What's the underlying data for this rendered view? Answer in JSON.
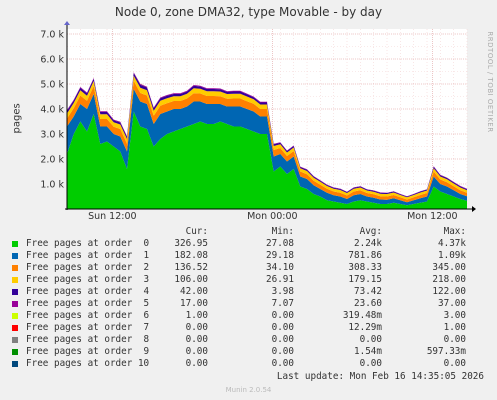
{
  "chart_data": {
    "type": "area",
    "title": "Node 0, zone DMA32, type Movable - by day",
    "ylabel": "pages",
    "side_label": "RRDTOOL / TOBI OETIKER",
    "ylim": [
      0,
      7200
    ],
    "y_ticks": [
      {
        "value": 1000,
        "label": "1.0 k"
      },
      {
        "value": 2000,
        "label": "2.0 k"
      },
      {
        "value": 3000,
        "label": "3.0 k"
      },
      {
        "value": 4000,
        "label": "4.0 k"
      },
      {
        "value": 5000,
        "label": "5.0 k"
      },
      {
        "value": 6000,
        "label": "6.0 k"
      },
      {
        "value": 7000,
        "label": "7.0 k"
      }
    ],
    "x_range_hours": [
      -30,
      0
    ],
    "x_ticks": [
      {
        "hour": -26.6,
        "label": "Sun 12:00"
      },
      {
        "hour": -14.6,
        "label": "Mon 00:00"
      },
      {
        "hour": -2.6,
        "label": "Mon 12:00"
      }
    ],
    "grid": true,
    "x_hours": [
      -30,
      -29.5,
      -29,
      -28.5,
      -28,
      -27.5,
      -27,
      -26.5,
      -26,
      -25.5,
      -25,
      -24.5,
      -24,
      -23.5,
      -23,
      -22.5,
      -22,
      -21.5,
      -21,
      -20.5,
      -20,
      -19.5,
      -19,
      -18.5,
      -18,
      -17.5,
      -17,
      -16.5,
      -16,
      -15.5,
      -15,
      -14.5,
      -14,
      -13.5,
      -13,
      -12.5,
      -12,
      -11.5,
      -11,
      -10.5,
      -10,
      -9.5,
      -9,
      -8.5,
      -8,
      -7.5,
      -7,
      -6.5,
      -6,
      -5.5,
      -5,
      -4.5,
      -4,
      -3.5,
      -3,
      -2.5,
      -2,
      -1.5,
      -1,
      -0.5,
      0
    ],
    "series": [
      {
        "name": "Free pages at order  0",
        "color": "#00cc00",
        "cur": "326.95",
        "min": "27.08",
        "avg": "2.24k",
        "max": "4.37k",
        "values": [
          2200,
          3000,
          3500,
          3100,
          3800,
          2600,
          2700,
          2500,
          2300,
          1600,
          3900,
          3300,
          3200,
          2500,
          2800,
          3000,
          3100,
          3200,
          3300,
          3400,
          3500,
          3400,
          3400,
          3500,
          3400,
          3300,
          3300,
          3200,
          3100,
          3000,
          3000,
          1500,
          1700,
          1400,
          1600,
          900,
          800,
          600,
          500,
          350,
          300,
          250,
          200,
          300,
          350,
          300,
          250,
          200,
          200,
          250,
          200,
          150,
          200,
          250,
          300,
          900,
          700,
          600,
          500,
          400,
          327
        ]
      },
      {
        "name": "Free pages at order  1",
        "color": "#0066b3",
        "cur": "182.08",
        "min": "29.18",
        "avg": "781.86",
        "max": "1.09k",
        "values": [
          1100,
          700,
          700,
          900,
          800,
          700,
          600,
          500,
          600,
          700,
          900,
          1000,
          1000,
          900,
          1000,
          900,
          900,
          800,
          800,
          900,
          800,
          800,
          800,
          700,
          700,
          800,
          800,
          800,
          800,
          700,
          700,
          600,
          500,
          500,
          500,
          400,
          400,
          350,
          300,
          300,
          250,
          250,
          200,
          250,
          250,
          200,
          200,
          180,
          170,
          180,
          150,
          120,
          150,
          180,
          200,
          400,
          300,
          300,
          250,
          200,
          182
        ]
      },
      {
        "name": "Free pages at order  2",
        "color": "#ff8000",
        "cur": "136.52",
        "min": "34.10",
        "avg": "308.33",
        "max": "345.00",
        "values": [
          320,
          330,
          340,
          330,
          320,
          300,
          300,
          290,
          300,
          310,
          330,
          340,
          340,
          330,
          330,
          330,
          320,
          320,
          320,
          330,
          320,
          320,
          320,
          310,
          310,
          320,
          320,
          310,
          310,
          300,
          300,
          260,
          240,
          220,
          220,
          200,
          190,
          180,
          170,
          160,
          150,
          150,
          140,
          150,
          150,
          140,
          140,
          130,
          130,
          130,
          120,
          110,
          120,
          130,
          140,
          200,
          180,
          170,
          160,
          150,
          137
        ]
      },
      {
        "name": "Free pages at order  3",
        "color": "#ffcc00",
        "cur": "106.00",
        "min": "26.91",
        "avg": "179.15",
        "max": "218.00",
        "values": [
          200,
          210,
          210,
          200,
          200,
          190,
          190,
          180,
          180,
          190,
          200,
          210,
          210,
          200,
          200,
          200,
          190,
          190,
          190,
          200,
          190,
          190,
          190,
          190,
          190,
          190,
          190,
          190,
          180,
          180,
          180,
          160,
          150,
          140,
          140,
          130,
          130,
          120,
          120,
          110,
          110,
          110,
          100,
          110,
          110,
          100,
          100,
          100,
          100,
          100,
          90,
          90,
          90,
          100,
          100,
          130,
          120,
          120,
          110,
          110,
          106
        ]
      },
      {
        "name": "Free pages at order  4",
        "color": "#330099",
        "cur": "42.00",
        "min": "3.98",
        "avg": "73.42",
        "max": "122.00",
        "values": [
          110,
          100,
          100,
          100,
          90,
          90,
          90,
          80,
          80,
          90,
          110,
          120,
          110,
          100,
          100,
          100,
          90,
          90,
          90,
          100,
          90,
          90,
          90,
          90,
          90,
          90,
          90,
          90,
          80,
          80,
          80,
          70,
          60,
          60,
          60,
          50,
          50,
          50,
          40,
          40,
          40,
          40,
          40,
          40,
          40,
          40,
          40,
          40,
          40,
          40,
          30,
          30,
          30,
          40,
          40,
          60,
          50,
          50,
          45,
          45,
          42
        ]
      },
      {
        "name": "Free pages at order  5",
        "color": "#990099",
        "cur": "17.00",
        "min": "7.07",
        "avg": "23.60",
        "max": "37.00",
        "values": [
          30,
          30,
          30,
          30,
          28,
          28,
          27,
          26,
          26,
          27,
          32,
          34,
          32,
          30,
          30,
          30,
          28,
          28,
          28,
          30,
          28,
          28,
          28,
          28,
          28,
          28,
          28,
          27,
          26,
          26,
          26,
          22,
          20,
          20,
          20,
          18,
          18,
          17,
          16,
          16,
          15,
          15,
          14,
          15,
          15,
          14,
          14,
          14,
          14,
          14,
          12,
          12,
          12,
          13,
          14,
          20,
          18,
          18,
          17,
          17,
          17
        ]
      },
      {
        "name": "Free pages at order  6",
        "color": "#ccff00",
        "cur": "1.00",
        "min": "0.00",
        "avg": "319.48m",
        "max": "3.00",
        "values": [
          1,
          1,
          0,
          0,
          1,
          0,
          0,
          0,
          0,
          0,
          1,
          2,
          1,
          0,
          0,
          0,
          0,
          0,
          0,
          1,
          0,
          0,
          0,
          0,
          0,
          0,
          0,
          0,
          0,
          0,
          0,
          0,
          0,
          0,
          0,
          0,
          0,
          0,
          0,
          0,
          0,
          0,
          0,
          0,
          0,
          0,
          0,
          0,
          0,
          0,
          0,
          0,
          0,
          0,
          0,
          1,
          1,
          1,
          1,
          1,
          1
        ]
      },
      {
        "name": "Free pages at order  7",
        "color": "#ff0000",
        "cur": "0.00",
        "min": "0.00",
        "avg": "12.29m",
        "max": "1.00",
        "values": [
          0,
          0,
          0,
          0,
          0,
          0,
          0,
          0,
          0,
          0,
          0,
          0,
          0,
          0,
          0,
          0,
          0,
          0,
          0,
          0,
          0,
          0,
          0,
          0,
          0,
          0,
          0,
          0,
          0,
          0,
          0,
          0,
          0,
          0,
          0,
          0,
          0,
          0,
          0,
          0,
          0,
          0,
          0,
          0,
          0,
          0,
          0,
          0,
          0,
          0,
          0,
          0,
          0,
          0,
          0,
          0,
          0,
          0,
          0,
          0,
          0
        ]
      },
      {
        "name": "Free pages at order  8",
        "color": "#808080",
        "cur": "0.00",
        "min": "0.00",
        "avg": "0.00",
        "max": "0.00",
        "values": [
          0,
          0,
          0,
          0,
          0,
          0,
          0,
          0,
          0,
          0,
          0,
          0,
          0,
          0,
          0,
          0,
          0,
          0,
          0,
          0,
          0,
          0,
          0,
          0,
          0,
          0,
          0,
          0,
          0,
          0,
          0,
          0,
          0,
          0,
          0,
          0,
          0,
          0,
          0,
          0,
          0,
          0,
          0,
          0,
          0,
          0,
          0,
          0,
          0,
          0,
          0,
          0,
          0,
          0,
          0,
          0,
          0,
          0,
          0,
          0,
          0
        ]
      },
      {
        "name": "Free pages at order  9",
        "color": "#008f00",
        "cur": "0.00",
        "min": "0.00",
        "avg": "1.54m",
        "max": "597.33m",
        "values": [
          0,
          0,
          0,
          0,
          0,
          0,
          0,
          0,
          0,
          0,
          0,
          0,
          0,
          0,
          0,
          0,
          0,
          0,
          0,
          0,
          0,
          0,
          0,
          0,
          0,
          0,
          0,
          0,
          0,
          0,
          0,
          0,
          0,
          0,
          0,
          0,
          0,
          0,
          0,
          0,
          0,
          0,
          0,
          0,
          0,
          0,
          0,
          0,
          0,
          0,
          0,
          0,
          0,
          0,
          0,
          0,
          0,
          0,
          0,
          0,
          0
        ]
      },
      {
        "name": "Free pages at order 10",
        "color": "#00487d",
        "cur": "0.00",
        "min": "0.00",
        "avg": "0.00",
        "max": "0.00",
        "values": [
          0,
          0,
          0,
          0,
          0,
          0,
          0,
          0,
          0,
          0,
          0,
          0,
          0,
          0,
          0,
          0,
          0,
          0,
          0,
          0,
          0,
          0,
          0,
          0,
          0,
          0,
          0,
          0,
          0,
          0,
          0,
          0,
          0,
          0,
          0,
          0,
          0,
          0,
          0,
          0,
          0,
          0,
          0,
          0,
          0,
          0,
          0,
          0,
          0,
          0,
          0,
          0,
          0,
          0,
          0,
          0,
          0,
          0,
          0,
          0,
          0
        ]
      }
    ]
  },
  "legend_headers": {
    "cur": "Cur:",
    "min": "Min:",
    "avg": "Avg:",
    "max": "Max:"
  },
  "last_update": "Last update: Mon Feb 16 14:35:05 2026",
  "footer": "Munin 2.0.54"
}
